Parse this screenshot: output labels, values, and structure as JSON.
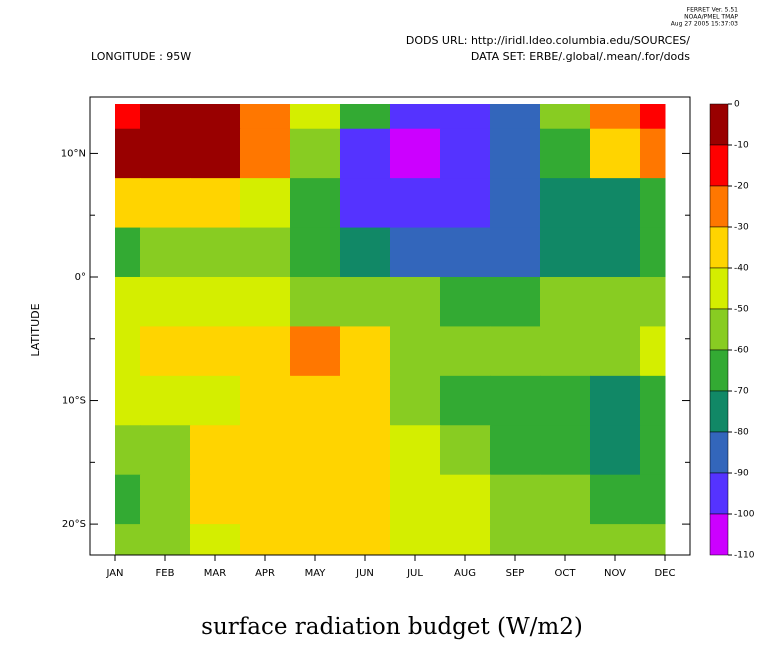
{
  "chart_data": {
    "type": "contour",
    "title": "surface radiation budget (W/m2)",
    "header": [
      "FERRET Ver. 5.51",
      "NOAA/PMEL TMAP",
      "Aug 27 2005 15:37:03"
    ],
    "dods_url": "DODS URL: http://iridl.ldeo.columbia.edu/SOURCES/",
    "longitude": "LONGITUDE : 95W",
    "data_set": "DATA SET: ERBE/.global/.mean/.for/dods",
    "y_label": "LATITUDE",
    "categories": [
      "JAN",
      "FEB",
      "MAR",
      "APR",
      "MAY",
      "JUN",
      "JUL",
      "AUG",
      "SEP",
      "OCT",
      "NOV",
      "DEC"
    ],
    "y": [
      14,
      10,
      6,
      2,
      -2,
      -6,
      -10,
      -14,
      -18,
      -22
    ],
    "values": [
      [
        -12,
        -8,
        -8,
        -25,
        -45,
        -65,
        -90,
        -90,
        -80,
        -50,
        -25,
        -15
      ],
      [
        -8,
        -5,
        -8,
        -25,
        -50,
        -95,
        -105,
        -95,
        -85,
        -60,
        -35,
        -25
      ],
      [
        -35,
        -32,
        -35,
        -45,
        -65,
        -92,
        -95,
        -92,
        -85,
        -75,
        -70,
        -65
      ],
      [
        -65,
        -55,
        -52,
        -55,
        -60,
        -75,
        -80,
        -85,
        -88,
        -72,
        -70,
        -65
      ],
      [
        -45,
        -42,
        -45,
        -48,
        -50,
        -55,
        -58,
        -62,
        -68,
        -58,
        -55,
        -52
      ],
      [
        -45,
        -38,
        -38,
        -36,
        -25,
        -35,
        -50,
        -55,
        -55,
        -55,
        -50,
        -45
      ],
      [
        -45,
        -45,
        -40,
        -38,
        -38,
        -38,
        -50,
        -60,
        -60,
        -62,
        -72,
        -65
      ],
      [
        -55,
        -50,
        -38,
        -38,
        -38,
        -38,
        -45,
        -55,
        -62,
        -65,
        -70,
        -62
      ],
      [
        -60,
        -50,
        -38,
        -38,
        -38,
        -38,
        -40,
        -48,
        -55,
        -58,
        -62,
        -60
      ],
      [
        -58,
        -55,
        -40,
        -38,
        -38,
        -38,
        -42,
        -45,
        -52,
        -55,
        -58,
        -58
      ]
    ],
    "ylim": [
      -22.5,
      14
    ],
    "yticks": [
      {
        "value": 10,
        "label": "10°N"
      },
      {
        "value": 0,
        "label": "0°"
      },
      {
        "value": -10,
        "label": "10°S"
      },
      {
        "value": -20,
        "label": "20°S"
      }
    ],
    "yminor": [
      5,
      -5,
      -15
    ],
    "levels": [
      0,
      -10,
      -20,
      -30,
      -40,
      -50,
      -60,
      -70,
      -80,
      -90,
      -100,
      -110
    ],
    "colors": [
      "#990000",
      "#ff0000",
      "#ff7700",
      "#ffd400",
      "#d4ee00",
      "#88cc22",
      "#33aa33",
      "#118866",
      "#3366bb",
      "#5533ff",
      "#cc00ff"
    ]
  }
}
